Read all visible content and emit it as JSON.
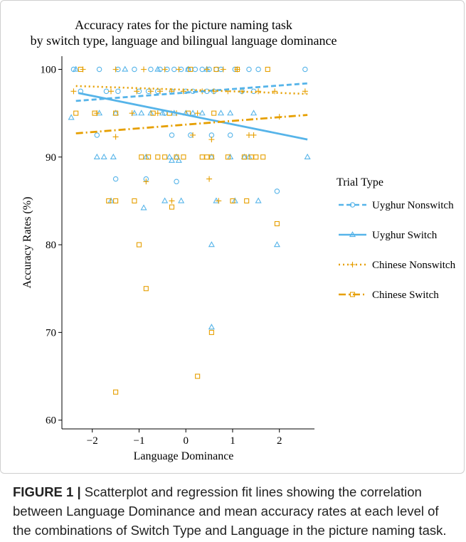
{
  "chart_data": {
    "type": "scatter",
    "title": "Accuracy rates for the picture naming task",
    "subtitle": "by switch type, language and bilingual language dominance",
    "xlabel": "Language Dominance",
    "ylabel": "Accuracy Rates (%)",
    "xlim": [
      -2.65,
      2.75
    ],
    "ylim": [
      59,
      101.5
    ],
    "xticks": [
      -2,
      -1,
      0,
      1,
      2
    ],
    "yticks": [
      60,
      70,
      80,
      90,
      100
    ],
    "grid": false,
    "legend_title": "Trial Type",
    "legend_position": "right",
    "series": [
      {
        "name": "Uyghur Nonswitch",
        "color": "#56B4E9",
        "marker": "circle",
        "line": "dashed",
        "fit": [
          [
            -2.35,
            96.4
          ],
          [
            2.6,
            98.4
          ]
        ],
        "points": [
          [
            -2.4,
            100
          ],
          [
            -2.25,
            97.5
          ],
          [
            -1.9,
            92.5
          ],
          [
            -1.85,
            100
          ],
          [
            -1.7,
            97.5
          ],
          [
            -1.5,
            87.5
          ],
          [
            -1.45,
            97.5
          ],
          [
            -1.45,
            100
          ],
          [
            -1.1,
            100
          ],
          [
            -1.0,
            97.5
          ],
          [
            -0.85,
            87.5
          ],
          [
            -0.8,
            97.5
          ],
          [
            -0.75,
            100
          ],
          [
            -0.6,
            97.5
          ],
          [
            -0.55,
            100
          ],
          [
            -0.45,
            95
          ],
          [
            -0.4,
            100
          ],
          [
            -0.3,
            92.5
          ],
          [
            -0.3,
            97.5
          ],
          [
            -0.25,
            100
          ],
          [
            -0.2,
            87.2
          ],
          [
            -0.1,
            100
          ],
          [
            0.0,
            97.5
          ],
          [
            0.05,
            100
          ],
          [
            0.1,
            92.5
          ],
          [
            0.15,
            97.5
          ],
          [
            0.2,
            100
          ],
          [
            0.35,
            100
          ],
          [
            0.45,
            97.5
          ],
          [
            0.5,
            100
          ],
          [
            0.55,
            92.5
          ],
          [
            0.6,
            97.5
          ],
          [
            0.65,
            100
          ],
          [
            0.75,
            100
          ],
          [
            0.95,
            92.5
          ],
          [
            1.05,
            100
          ],
          [
            1.2,
            97.5
          ],
          [
            1.35,
            100
          ],
          [
            1.45,
            97.5
          ],
          [
            1.55,
            100
          ],
          [
            1.95,
            86.1
          ],
          [
            2.55,
            100
          ]
        ]
      },
      {
        "name": "Uyghur Switch",
        "color": "#56B4E9",
        "marker": "triangle",
        "line": "solid",
        "fit": [
          [
            -2.3,
            97.3
          ],
          [
            2.6,
            92.0
          ]
        ],
        "points": [
          [
            -2.45,
            94.5
          ],
          [
            -2.35,
            100
          ],
          [
            -1.9,
            90
          ],
          [
            -1.85,
            95
          ],
          [
            -1.75,
            90
          ],
          [
            -1.6,
            85
          ],
          [
            -1.55,
            90
          ],
          [
            -1.5,
            95
          ],
          [
            -1.3,
            100
          ],
          [
            -1.1,
            95
          ],
          [
            -0.95,
            95
          ],
          [
            -0.9,
            84.2
          ],
          [
            -0.85,
            90
          ],
          [
            -0.75,
            95
          ],
          [
            -0.6,
            100
          ],
          [
            -0.5,
            95
          ],
          [
            -0.45,
            85
          ],
          [
            -0.35,
            90
          ],
          [
            -0.3,
            89.6
          ],
          [
            -0.25,
            95
          ],
          [
            -0.2,
            90
          ],
          [
            -0.15,
            89.6
          ],
          [
            -0.1,
            85
          ],
          [
            0.0,
            95
          ],
          [
            0.05,
            100
          ],
          [
            0.15,
            95
          ],
          [
            0.35,
            95
          ],
          [
            0.45,
            100
          ],
          [
            0.55,
            80
          ],
          [
            0.55,
            70.6
          ],
          [
            0.55,
            90
          ],
          [
            0.65,
            85
          ],
          [
            0.75,
            95
          ],
          [
            0.95,
            90
          ],
          [
            0.95,
            95
          ],
          [
            1.05,
            85
          ],
          [
            1.25,
            90
          ],
          [
            1.35,
            90
          ],
          [
            1.45,
            95
          ],
          [
            1.55,
            85
          ],
          [
            1.95,
            80
          ],
          [
            2.6,
            90
          ]
        ]
      },
      {
        "name": "Chinese Nonswitch",
        "color": "#E69F00",
        "marker": "plus",
        "line": "dotted",
        "fit": [
          [
            -2.35,
            98.1
          ],
          [
            2.6,
            97.2
          ]
        ],
        "points": [
          [
            -2.4,
            97.5
          ],
          [
            -2.2,
            100
          ],
          [
            -1.9,
            95
          ],
          [
            -1.6,
            97.5
          ],
          [
            -1.5,
            92.3
          ],
          [
            -1.5,
            100
          ],
          [
            -1.15,
            95
          ],
          [
            -1.05,
            97.5
          ],
          [
            -0.9,
            100
          ],
          [
            -0.85,
            87.2
          ],
          [
            -0.75,
            97.5
          ],
          [
            -0.6,
            95
          ],
          [
            -0.55,
            97.5
          ],
          [
            -0.45,
            100
          ],
          [
            -0.3,
            85
          ],
          [
            -0.3,
            97.5
          ],
          [
            -0.2,
            95
          ],
          [
            -0.15,
            100
          ],
          [
            -0.05,
            97.5
          ],
          [
            0.15,
            92.5
          ],
          [
            0.25,
            95
          ],
          [
            0.35,
            97.5
          ],
          [
            0.45,
            100
          ],
          [
            0.5,
            87.5
          ],
          [
            0.55,
            92
          ],
          [
            0.6,
            97.5
          ],
          [
            0.7,
            85
          ],
          [
            0.8,
            100
          ],
          [
            0.9,
            97.5
          ],
          [
            1.1,
            100
          ],
          [
            1.2,
            97.5
          ],
          [
            1.35,
            92.5
          ],
          [
            1.45,
            92.5
          ],
          [
            1.55,
            97.5
          ],
          [
            1.9,
            97.5
          ],
          [
            2.0,
            94.6
          ],
          [
            2.55,
            97.5
          ]
        ]
      },
      {
        "name": "Chinese Switch",
        "color": "#E69F00",
        "marker": "square",
        "line": "dotdash",
        "fit": [
          [
            -2.35,
            92.7
          ],
          [
            2.6,
            94.8
          ]
        ],
        "points": [
          [
            -2.35,
            95
          ],
          [
            -2.25,
            100
          ],
          [
            -1.95,
            95
          ],
          [
            -1.65,
            85
          ],
          [
            -1.5,
            85
          ],
          [
            -1.5,
            63.2
          ],
          [
            -1.5,
            95
          ],
          [
            -1.1,
            85
          ],
          [
            -1.0,
            80
          ],
          [
            -0.95,
            90
          ],
          [
            -0.85,
            75
          ],
          [
            -0.8,
            90
          ],
          [
            -0.7,
            95
          ],
          [
            -0.6,
            90
          ],
          [
            -0.45,
            90
          ],
          [
            -0.35,
            95
          ],
          [
            -0.3,
            84.3
          ],
          [
            -0.2,
            90
          ],
          [
            -0.05,
            90
          ],
          [
            0.05,
            95
          ],
          [
            0.1,
            100
          ],
          [
            0.25,
            65
          ],
          [
            0.35,
            90
          ],
          [
            0.45,
            90
          ],
          [
            0.55,
            70
          ],
          [
            0.55,
            90
          ],
          [
            0.6,
            95
          ],
          [
            0.65,
            100
          ],
          [
            0.9,
            90
          ],
          [
            1.0,
            85
          ],
          [
            1.1,
            100
          ],
          [
            1.25,
            90
          ],
          [
            1.3,
            85
          ],
          [
            1.4,
            90
          ],
          [
            1.5,
            90
          ],
          [
            1.65,
            90
          ],
          [
            1.75,
            100
          ],
          [
            1.95,
            82.4
          ]
        ]
      }
    ]
  },
  "caption": {
    "label": "FIGURE 1 |",
    "text": "Scatterplot and regression fit lines showing the correlation between Language Dominance and mean accuracy rates at each level of the combinations of Switch Type and Language in the picture naming task."
  }
}
